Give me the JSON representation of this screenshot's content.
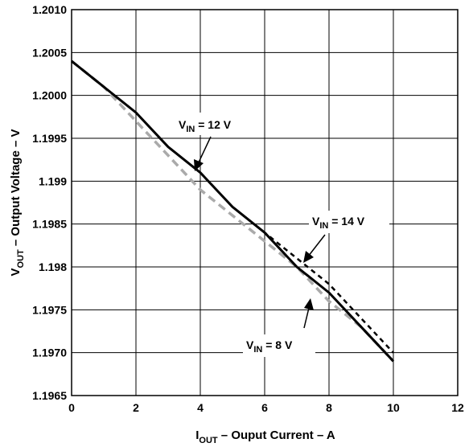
{
  "chart_data": {
    "type": "line",
    "xlabel": {
      "main": "I",
      "sub": "OUT",
      "rest": " – Ouput Current  – A"
    },
    "ylabel": {
      "main": "V",
      "sub": "OUT",
      "rest": " – Output Voltage – V"
    },
    "xlim": [
      0,
      12
    ],
    "ylim": [
      1.1965,
      1.201
    ],
    "xticks": [
      "0",
      "2",
      "4",
      "6",
      "8",
      "10",
      "12"
    ],
    "yticks": [
      "1.1965",
      "1.1970",
      "1.1975",
      "1.198",
      "1.1985",
      "1.199",
      "1.1995",
      "1.2000",
      "1.2005",
      "1.2010"
    ],
    "grid": true,
    "series": [
      {
        "name": "V_IN = 12 V",
        "color": "#000000",
        "dash": "solid",
        "x": [
          0,
          1,
          2,
          3,
          4,
          5,
          6,
          7,
          8,
          9,
          10
        ],
        "y": [
          1.2004,
          1.2001,
          1.1998,
          1.1994,
          1.1991,
          1.1987,
          1.1984,
          1.198,
          1.1977,
          1.1973,
          1.1969
        ]
      },
      {
        "name": "V_IN = 14 V",
        "color": "#000000",
        "dash": "dashed",
        "x": [
          0,
          1,
          2,
          3,
          4,
          5,
          6,
          7,
          8,
          9,
          10
        ],
        "y": [
          1.2004,
          1.2001,
          1.1998,
          1.1994,
          1.1991,
          1.1987,
          1.1984,
          1.1981,
          1.1978,
          1.1974,
          1.197
        ]
      },
      {
        "name": "V_IN = 8 V",
        "color": "#aaaaaa",
        "dash": "dashed",
        "x": [
          0,
          1,
          2,
          3,
          4,
          5,
          6,
          7,
          8,
          9,
          10
        ],
        "y": [
          1.2004,
          1.2001,
          1.1997,
          1.1993,
          1.1989,
          1.1986,
          1.1983,
          1.198,
          1.1976,
          1.1973,
          1.1969
        ]
      }
    ],
    "annotations": [
      {
        "main": "V",
        "sub": "IN",
        "rest": " = 12 V"
      },
      {
        "main": "V",
        "sub": "IN",
        "rest": " = 14 V"
      },
      {
        "main": "V",
        "sub": "IN",
        "rest": " = 8 V"
      }
    ]
  }
}
